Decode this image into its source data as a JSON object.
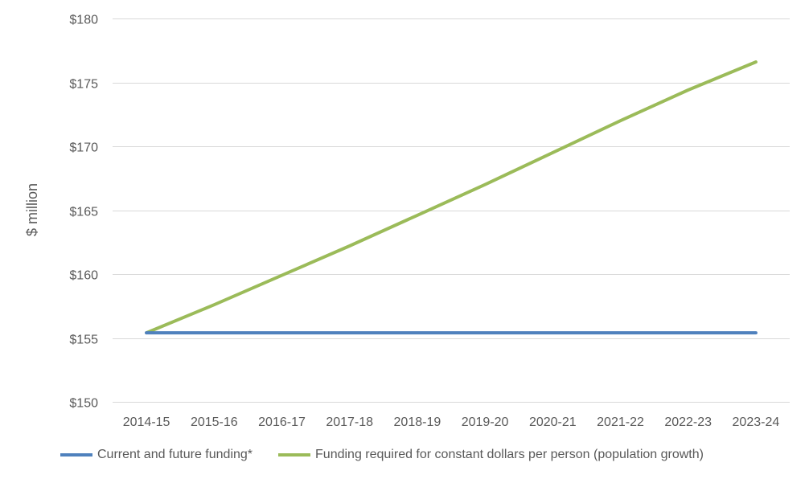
{
  "chart_data": {
    "type": "line",
    "categories": [
      "2014-15",
      "2015-16",
      "2016-17",
      "2017-18",
      "2018-19",
      "2019-20",
      "2020-21",
      "2021-22",
      "2022-23",
      "2023-24"
    ],
    "series": [
      {
        "name": "Current and future funding*",
        "color": "#4f81bd",
        "values": [
          155.4,
          155.4,
          155.4,
          155.4,
          155.4,
          155.4,
          155.4,
          155.4,
          155.4,
          155.4
        ]
      },
      {
        "name": "Funding required for constant dollars per person (population growth)",
        "color": "#9bbb59",
        "values": [
          155.4,
          157.6,
          159.9,
          162.2,
          164.6,
          167.0,
          169.5,
          172.0,
          174.4,
          176.6
        ]
      }
    ],
    "ylabel": "$ million",
    "ylim": [
      150,
      180
    ],
    "yticks": [
      {
        "value": 150,
        "label": "$150"
      },
      {
        "value": 155,
        "label": "$155"
      },
      {
        "value": 160,
        "label": "$160"
      },
      {
        "value": 165,
        "label": "$165"
      },
      {
        "value": 170,
        "label": "$170"
      },
      {
        "value": 175,
        "label": "$175"
      },
      {
        "value": 180,
        "label": "$180"
      }
    ],
    "grid": true,
    "legend_position": "bottom",
    "gridline_color": "#d9d9d9"
  }
}
